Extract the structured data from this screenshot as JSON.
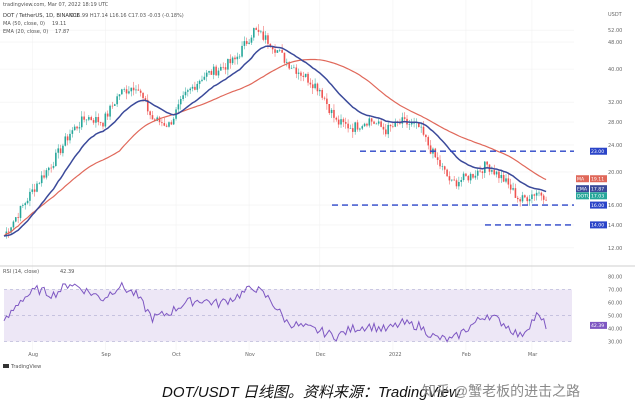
{
  "header": {
    "published": "tradingview.com, Mar 07, 2022 18:19 UTC",
    "symbol": "DOT / TetherUS, 1D, BINANCE",
    "ohlc": "O16.99 H17.14 L16.16 C17.03 -0.03 (-0.18%)",
    "ma_label": "MA (50, close, 0)",
    "ma_value": "19.11",
    "ema_label": "EMA (20, close, 0)",
    "ema_value": "17.87",
    "rsi_label": "RSI (14, close)",
    "rsi_value": "42.39",
    "currency": "USDT"
  },
  "colors": {
    "ma": "#e0685a",
    "ema": "#3b4a9a",
    "up": "#26a69a",
    "down": "#ef5350",
    "level": "#2a44c8",
    "rsi": "#7e57c2",
    "rsi_band": "#ede7f6"
  },
  "chart_data": [
    {
      "type": "candlestick",
      "title": "DOT / TetherUS, 1D, BINANCE",
      "x": [
        "Aug",
        "Sep",
        "Oct",
        "Nov",
        "Dec",
        "2022",
        "Feb",
        "Mar"
      ],
      "y_ticks": [
        12.0,
        14.0,
        16.0,
        20.0,
        24.0,
        28.0,
        32.0,
        40.0,
        48.0,
        52.0
      ],
      "y_scale": "log",
      "grid": true,
      "series": [
        {
          "name": "MA (50, close, 0)",
          "last": 19.11
        },
        {
          "name": "EMA (20, close, 0)",
          "last": 17.87
        }
      ],
      "close_points": [
        [
          "2021-07-20",
          13.0
        ],
        [
          "2021-07-27",
          15.5
        ],
        [
          "2021-08-03",
          18.5
        ],
        [
          "2021-08-10",
          21.5
        ],
        [
          "2021-08-17",
          26.0
        ],
        [
          "2021-08-24",
          29.0
        ],
        [
          "2021-08-31",
          28.0
        ],
        [
          "2021-09-07",
          34.0
        ],
        [
          "2021-09-14",
          36.0
        ],
        [
          "2021-09-21",
          28.5
        ],
        [
          "2021-09-28",
          27.5
        ],
        [
          "2021-10-05",
          33.5
        ],
        [
          "2021-10-12",
          38.0
        ],
        [
          "2021-10-19",
          40.0
        ],
        [
          "2021-10-26",
          42.5
        ],
        [
          "2021-11-03",
          52.0
        ],
        [
          "2021-11-10",
          48.0
        ],
        [
          "2021-11-17",
          42.0
        ],
        [
          "2021-11-24",
          38.5
        ],
        [
          "2021-12-01",
          35.0
        ],
        [
          "2021-12-08",
          28.0
        ],
        [
          "2021-12-15",
          27.0
        ],
        [
          "2021-12-22",
          28.5
        ],
        [
          "2021-12-29",
          26.5
        ],
        [
          "2022-01-05",
          28.0
        ],
        [
          "2022-01-12",
          27.0
        ],
        [
          "2022-01-19",
          22.0
        ],
        [
          "2022-01-26",
          18.5
        ],
        [
          "2022-02-03",
          19.5
        ],
        [
          "2022-02-10",
          21.0
        ],
        [
          "2022-02-17",
          19.0
        ],
        [
          "2022-02-24",
          16.5
        ],
        [
          "2022-03-03",
          17.5
        ],
        [
          "2022-03-07",
          17.03
        ]
      ],
      "levels": [
        23.0,
        16.0,
        14.0
      ],
      "price_badges": [
        {
          "label": "23.00",
          "value": 23.0
        },
        {
          "label": "MA",
          "value": 19.11,
          "text": "19.11"
        },
        {
          "label": "EMA",
          "value": 17.87,
          "text": "17.87"
        },
        {
          "label": "DOTUSDT",
          "value": 17.03,
          "text": "17.03"
        },
        {
          "label": "16.00",
          "value": 16.0
        },
        {
          "label": "14.00",
          "value": 14.0
        }
      ]
    },
    {
      "type": "line",
      "title": "RSI (14, close)",
      "y_ticks": [
        30.0,
        40.0,
        50.0,
        60.0,
        70.0,
        80.0
      ],
      "band": [
        30,
        70
      ],
      "last": 42.39,
      "points": [
        [
          "2021-07-20",
          44
        ],
        [
          "2021-07-27",
          62
        ],
        [
          "2021-08-03",
          70
        ],
        [
          "2021-08-10",
          66
        ],
        [
          "2021-08-17",
          75
        ],
        [
          "2021-08-24",
          69
        ],
        [
          "2021-08-31",
          63
        ],
        [
          "2021-09-07",
          73
        ],
        [
          "2021-09-14",
          66
        ],
        [
          "2021-09-21",
          48
        ],
        [
          "2021-09-28",
          52
        ],
        [
          "2021-10-05",
          60
        ],
        [
          "2021-10-12",
          62
        ],
        [
          "2021-10-19",
          59
        ],
        [
          "2021-10-26",
          64
        ],
        [
          "2021-11-03",
          72
        ],
        [
          "2021-11-10",
          62
        ],
        [
          "2021-11-17",
          45
        ],
        [
          "2021-11-24",
          41
        ],
        [
          "2021-12-01",
          38
        ],
        [
          "2021-12-08",
          34
        ],
        [
          "2021-12-15",
          40
        ],
        [
          "2021-12-22",
          42
        ],
        [
          "2021-12-29",
          39
        ],
        [
          "2022-01-05",
          44
        ],
        [
          "2022-01-12",
          42
        ],
        [
          "2022-01-19",
          33
        ],
        [
          "2022-01-26",
          31
        ],
        [
          "2022-02-03",
          42
        ],
        [
          "2022-02-10",
          51
        ],
        [
          "2022-02-17",
          44
        ],
        [
          "2022-02-24",
          34
        ],
        [
          "2022-03-03",
          50
        ],
        [
          "2022-03-07",
          42.39
        ]
      ]
    }
  ],
  "watermark": "TradingView",
  "caption": {
    "main": "DOT/USDT 日线图。资料来源：TradingView",
    "source_mark": "知乎 @蟹老板的进击之路"
  }
}
